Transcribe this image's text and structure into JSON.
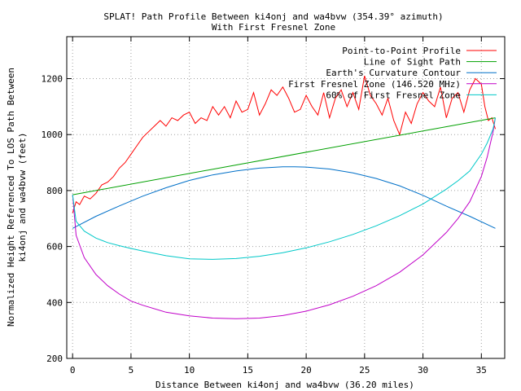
{
  "chart_data": {
    "type": "line",
    "title": "SPLAT! Path Profile Between ki4onj and wa4bvw (354.39° azimuth)",
    "subtitle": "With First Fresnel Zone",
    "xlabel": "Distance Between ki4onj and wa4bvw (36.20 miles)",
    "ylabel_line1": "Normalized Height Referenced To LOS Path Between",
    "ylabel_line2": "ki4onj and wa4bvw (feet)",
    "xlim": [
      -0.5,
      37.0
    ],
    "ylim": [
      200,
      1350
    ],
    "x_ticks": [
      0,
      5,
      10,
      15,
      20,
      25,
      30,
      35
    ],
    "y_ticks": [
      200,
      400,
      600,
      800,
      1000,
      1200
    ],
    "grid": true,
    "legend_position": "top-right",
    "colors": {
      "profile": "#ff0000",
      "los": "#00a000",
      "earth": "#0070c8",
      "fresnel": "#c000c8",
      "fresnel60": "#00c8c8"
    },
    "series": [
      {
        "name": "Point-to-Point Profile",
        "color": "#ff0000",
        "x": [
          0,
          0.3,
          0.6,
          1.0,
          1.5,
          2.0,
          2.5,
          3.0,
          3.5,
          4.0,
          4.5,
          5.0,
          5.5,
          6.0,
          6.5,
          7.0,
          7.5,
          8.0,
          8.5,
          9.0,
          9.5,
          10.0,
          10.5,
          11.0,
          11.5,
          12.0,
          12.5,
          13.0,
          13.5,
          14.0,
          14.5,
          15.0,
          15.5,
          16.0,
          16.5,
          17.0,
          17.5,
          18.0,
          18.5,
          19.0,
          19.5,
          20.0,
          20.5,
          21.0,
          21.5,
          22.0,
          22.5,
          23.0,
          23.5,
          24.0,
          24.5,
          25.0,
          25.5,
          26.0,
          26.5,
          27.0,
          27.5,
          28.0,
          28.5,
          29.0,
          29.5,
          30.0,
          30.5,
          31.0,
          31.5,
          32.0,
          32.5,
          33.0,
          33.5,
          34.0,
          34.5,
          35.0,
          35.3,
          35.6,
          35.9,
          36.2
        ],
        "y": [
          720,
          760,
          750,
          780,
          770,
          790,
          820,
          830,
          850,
          880,
          900,
          930,
          960,
          990,
          1010,
          1030,
          1050,
          1030,
          1060,
          1050,
          1070,
          1080,
          1040,
          1060,
          1050,
          1100,
          1070,
          1100,
          1060,
          1120,
          1080,
          1090,
          1150,
          1070,
          1110,
          1160,
          1140,
          1170,
          1130,
          1080,
          1090,
          1140,
          1100,
          1070,
          1150,
          1060,
          1130,
          1160,
          1100,
          1150,
          1090,
          1210,
          1140,
          1110,
          1070,
          1130,
          1050,
          1000,
          1080,
          1040,
          1110,
          1150,
          1120,
          1100,
          1170,
          1060,
          1130,
          1150,
          1080,
          1160,
          1200,
          1180,
          1100,
          1050,
          1060,
          1020
        ]
      },
      {
        "name": "Line of Sight Path",
        "color": "#00a000",
        "x": [
          0,
          36.2
        ],
        "y": [
          785,
          1060
        ]
      },
      {
        "name": "Earth's Curvature Contour",
        "color": "#0070c8",
        "x": [
          0,
          2,
          4,
          6,
          8,
          10,
          12,
          14,
          16,
          18,
          19,
          20,
          22,
          24,
          26,
          28,
          30,
          32,
          34,
          36.2
        ],
        "y": [
          665,
          708,
          745,
          780,
          810,
          836,
          856,
          870,
          880,
          885,
          885,
          884,
          877,
          863,
          843,
          817,
          783,
          744,
          708,
          665
        ]
      },
      {
        "name": "First Fresnel Zone (146.520 MHz)",
        "color": "#c000c8",
        "x": [
          0,
          0.3,
          1,
          2,
          3,
          4,
          5,
          6,
          8,
          10,
          12,
          14,
          16,
          18,
          20,
          22,
          24,
          26,
          28,
          30,
          32,
          33,
          34,
          35,
          35.5,
          36,
          36.2
        ],
        "y": [
          785,
          640,
          560,
          500,
          460,
          430,
          405,
          390,
          365,
          352,
          344,
          342,
          344,
          353,
          369,
          392,
          422,
          460,
          508,
          570,
          650,
          700,
          760,
          850,
          920,
          1010,
          1060
        ]
      },
      {
        "name": "60% of First Fresnel Zone",
        "color": "#00c8c8",
        "x": [
          0,
          0.3,
          1,
          2,
          3,
          4,
          5,
          6,
          8,
          10,
          12,
          14,
          16,
          18,
          20,
          22,
          24,
          26,
          28,
          30,
          32,
          33,
          34,
          35,
          35.5,
          36,
          36.2
        ],
        "y": [
          785,
          690,
          655,
          630,
          614,
          603,
          593,
          584,
          567,
          556,
          554,
          557,
          565,
          578,
          595,
          617,
          643,
          674,
          710,
          752,
          805,
          835,
          870,
          930,
          970,
          1020,
          1060
        ]
      }
    ]
  }
}
